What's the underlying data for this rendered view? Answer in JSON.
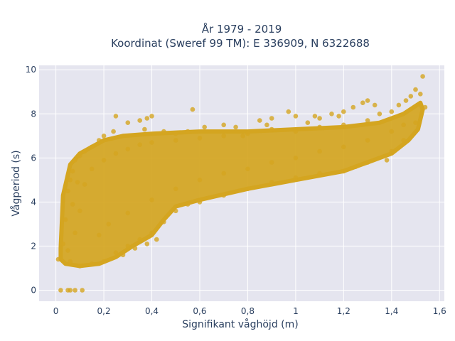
{
  "chart_data": {
    "type": "scatter",
    "title_line1": "År 1979 - 2019",
    "title_line2": "Koordinat (Sweref 99 TM): E 336909, N 6322688",
    "xlabel": "Signifikant våghöjd (m)",
    "ylabel": "Vågperiod (s)",
    "xlim": [
      -0.07,
      1.62
    ],
    "ylim": [
      -0.5,
      10.2
    ],
    "xticks": [
      0,
      0.2,
      0.4,
      0.6,
      0.8,
      1,
      1.2,
      1.4,
      1.6
    ],
    "xtick_labels": [
      "0",
      "0,2",
      "0,4",
      "0,6",
      "0,8",
      "1",
      "1,2",
      "1,4",
      "1,6"
    ],
    "yticks": [
      0,
      2,
      4,
      6,
      8,
      10
    ],
    "ytick_labels": [
      "0",
      "2",
      "4",
      "6",
      "8",
      "10"
    ],
    "grid": true,
    "marker_color": "#D4A520",
    "plot_background": "#E5E5EF",
    "series": [
      {
        "points": [
          [
            0.01,
            1.4
          ],
          [
            0.02,
            0.0
          ],
          [
            0.05,
            0.0
          ],
          [
            0.06,
            0.0
          ],
          [
            0.08,
            0.0
          ],
          [
            0.11,
            0.0
          ],
          [
            0.03,
            2.1
          ],
          [
            0.04,
            3.2
          ],
          [
            0.05,
            4.5
          ],
          [
            0.06,
            5.0
          ],
          [
            0.07,
            5.4
          ],
          [
            0.08,
            5.9
          ],
          [
            0.1,
            6.1
          ],
          [
            0.12,
            6.3
          ],
          [
            0.15,
            6.5
          ],
          [
            0.18,
            6.8
          ],
          [
            0.2,
            7.0
          ],
          [
            0.24,
            7.2
          ],
          [
            0.25,
            7.9
          ],
          [
            0.3,
            7.6
          ],
          [
            0.35,
            7.7
          ],
          [
            0.38,
            7.8
          ],
          [
            0.4,
            7.9
          ],
          [
            0.37,
            7.3
          ],
          [
            0.45,
            7.2
          ],
          [
            0.5,
            7.1
          ],
          [
            0.55,
            7.2
          ],
          [
            0.57,
            8.2
          ],
          [
            0.62,
            7.4
          ],
          [
            0.7,
            7.5
          ],
          [
            0.75,
            7.4
          ],
          [
            0.78,
            7.0
          ],
          [
            0.85,
            7.7
          ],
          [
            0.88,
            7.5
          ],
          [
            0.9,
            7.8
          ],
          [
            0.97,
            8.1
          ],
          [
            1.0,
            7.9
          ],
          [
            1.05,
            7.6
          ],
          [
            1.08,
            7.9
          ],
          [
            1.1,
            7.8
          ],
          [
            1.15,
            8.0
          ],
          [
            1.18,
            7.9
          ],
          [
            1.2,
            8.1
          ],
          [
            1.24,
            8.3
          ],
          [
            1.28,
            8.5
          ],
          [
            1.3,
            8.6
          ],
          [
            1.33,
            8.4
          ],
          [
            1.35,
            8.0
          ],
          [
            1.4,
            8.1
          ],
          [
            1.43,
            8.4
          ],
          [
            1.46,
            8.6
          ],
          [
            1.48,
            8.8
          ],
          [
            1.5,
            9.1
          ],
          [
            1.52,
            8.9
          ],
          [
            1.53,
            9.7
          ],
          [
            1.54,
            8.3
          ],
          [
            1.5,
            7.6
          ],
          [
            1.45,
            6.8
          ],
          [
            1.4,
            6.3
          ],
          [
            1.38,
            5.9
          ],
          [
            1.3,
            5.8
          ],
          [
            1.25,
            5.6
          ],
          [
            1.2,
            5.4
          ],
          [
            1.1,
            5.3
          ],
          [
            1.0,
            5.1
          ],
          [
            0.9,
            4.9
          ],
          [
            0.8,
            4.6
          ],
          [
            0.7,
            4.3
          ],
          [
            0.6,
            4.0
          ],
          [
            0.55,
            3.9
          ],
          [
            0.5,
            3.6
          ],
          [
            0.45,
            3.1
          ],
          [
            0.4,
            2.6
          ],
          [
            0.35,
            2.3
          ],
          [
            0.3,
            2.0
          ],
          [
            0.25,
            1.7
          ],
          [
            0.2,
            1.3
          ],
          [
            0.15,
            1.2
          ],
          [
            0.1,
            1.1
          ],
          [
            0.06,
            1.3
          ],
          [
            0.42,
            2.3
          ],
          [
            0.38,
            2.1
          ],
          [
            0.33,
            1.9
          ],
          [
            0.28,
            1.6
          ],
          [
            0.18,
            2.5
          ],
          [
            0.22,
            3.0
          ],
          [
            0.3,
            3.5
          ],
          [
            0.4,
            4.1
          ],
          [
            0.5,
            4.6
          ],
          [
            0.6,
            5.0
          ],
          [
            0.7,
            5.3
          ],
          [
            0.8,
            5.5
          ],
          [
            0.9,
            5.8
          ],
          [
            1.0,
            6.0
          ],
          [
            1.1,
            6.3
          ],
          [
            1.2,
            6.5
          ],
          [
            1.3,
            6.8
          ],
          [
            1.4,
            7.2
          ],
          [
            1.45,
            7.5
          ],
          [
            0.1,
            3.6
          ],
          [
            0.12,
            4.8
          ],
          [
            0.15,
            5.5
          ],
          [
            0.2,
            5.9
          ],
          [
            0.25,
            6.2
          ],
          [
            0.3,
            6.4
          ],
          [
            0.35,
            6.6
          ],
          [
            0.4,
            6.7
          ],
          [
            0.5,
            6.8
          ],
          [
            0.6,
            6.9
          ],
          [
            0.7,
            7.0
          ],
          [
            0.8,
            7.1
          ],
          [
            0.9,
            7.3
          ],
          [
            1.0,
            7.2
          ],
          [
            1.1,
            7.4
          ],
          [
            1.2,
            7.5
          ],
          [
            1.3,
            7.7
          ],
          [
            0.08,
            2.6
          ],
          [
            0.05,
            1.8
          ],
          [
            0.07,
            3.9
          ],
          [
            0.09,
            4.9
          ]
        ]
      }
    ]
  }
}
